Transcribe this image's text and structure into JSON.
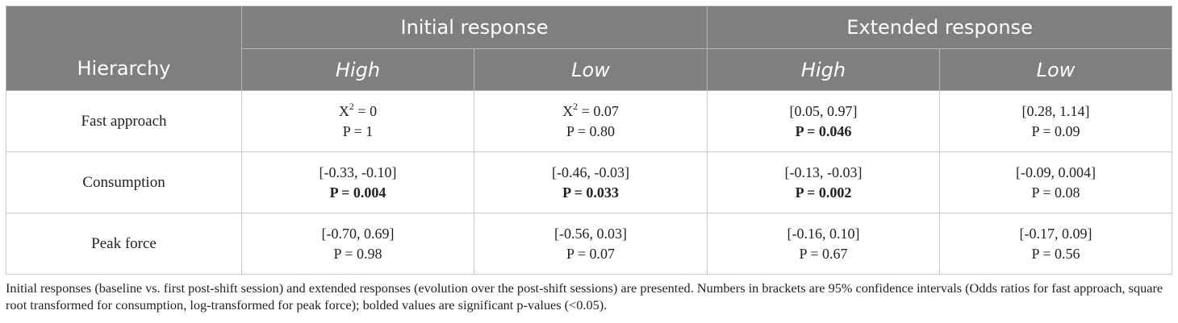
{
  "header": {
    "row_label": "Hierarchy",
    "group_initial": "Initial response",
    "group_extended": "Extended response",
    "sub_high_1": "High",
    "sub_low_1": "Low",
    "sub_high_2": "High",
    "sub_low_2": "Low"
  },
  "rows": [
    {
      "label": "Fast approach",
      "cells": [
        {
          "line1_prefix": "X",
          "line1_sup": "2",
          "line1_suffix": " = 0",
          "line2": "P = 1",
          "line2_bold": false
        },
        {
          "line1_prefix": "X",
          "line1_sup": "2",
          "line1_suffix": " = 0.07",
          "line2": "P = 0.80",
          "line2_bold": false
        },
        {
          "line1": "[0.05, 0.97]",
          "line2": "P = 0.046",
          "line2_bold": true
        },
        {
          "line1": "[0.28, 1.14]",
          "line2": "P = 0.09",
          "line2_bold": false
        }
      ]
    },
    {
      "label": "Consumption",
      "cells": [
        {
          "line1": "[-0.33, -0.10]",
          "line2": "P = 0.004",
          "line2_bold": true
        },
        {
          "line1": "[-0.46, -0.03]",
          "line2": "P = 0.033",
          "line2_bold": true
        },
        {
          "line1": "[-0.13, -0.03]",
          "line2": "P = 0.002",
          "line2_bold": true
        },
        {
          "line1": "[-0.09, 0.004]",
          "line2": "P = 0.08",
          "line2_bold": false
        }
      ]
    },
    {
      "label": "Peak force",
      "cells": [
        {
          "line1": "[-0.70, 0.69]",
          "line2": "P = 0.98",
          "line2_bold": false
        },
        {
          "line1": "[-0.56, 0.03]",
          "line2": "P = 0.07",
          "line2_bold": false
        },
        {
          "line1": "[-0.16, 0.10]",
          "line2": "P = 0.67",
          "line2_bold": false
        },
        {
          "line1": "[-0.17, 0.09]",
          "line2": "P = 0.56",
          "line2_bold": false
        }
      ]
    }
  ],
  "caption": "Initial responses (baseline vs. first post-shift session) and extended responses (evolution over the post-shift sessions) are presented. Numbers in brackets are 95% confidence intervals (Odds ratios for fast approach, square root transformed for consumption, log-transformed for peak force); bolded values are significant p-values (<0.05).",
  "colors": {
    "header_bg": "#7f7f7d",
    "header_text": "#ffffff",
    "border": "#c9c9c9"
  }
}
